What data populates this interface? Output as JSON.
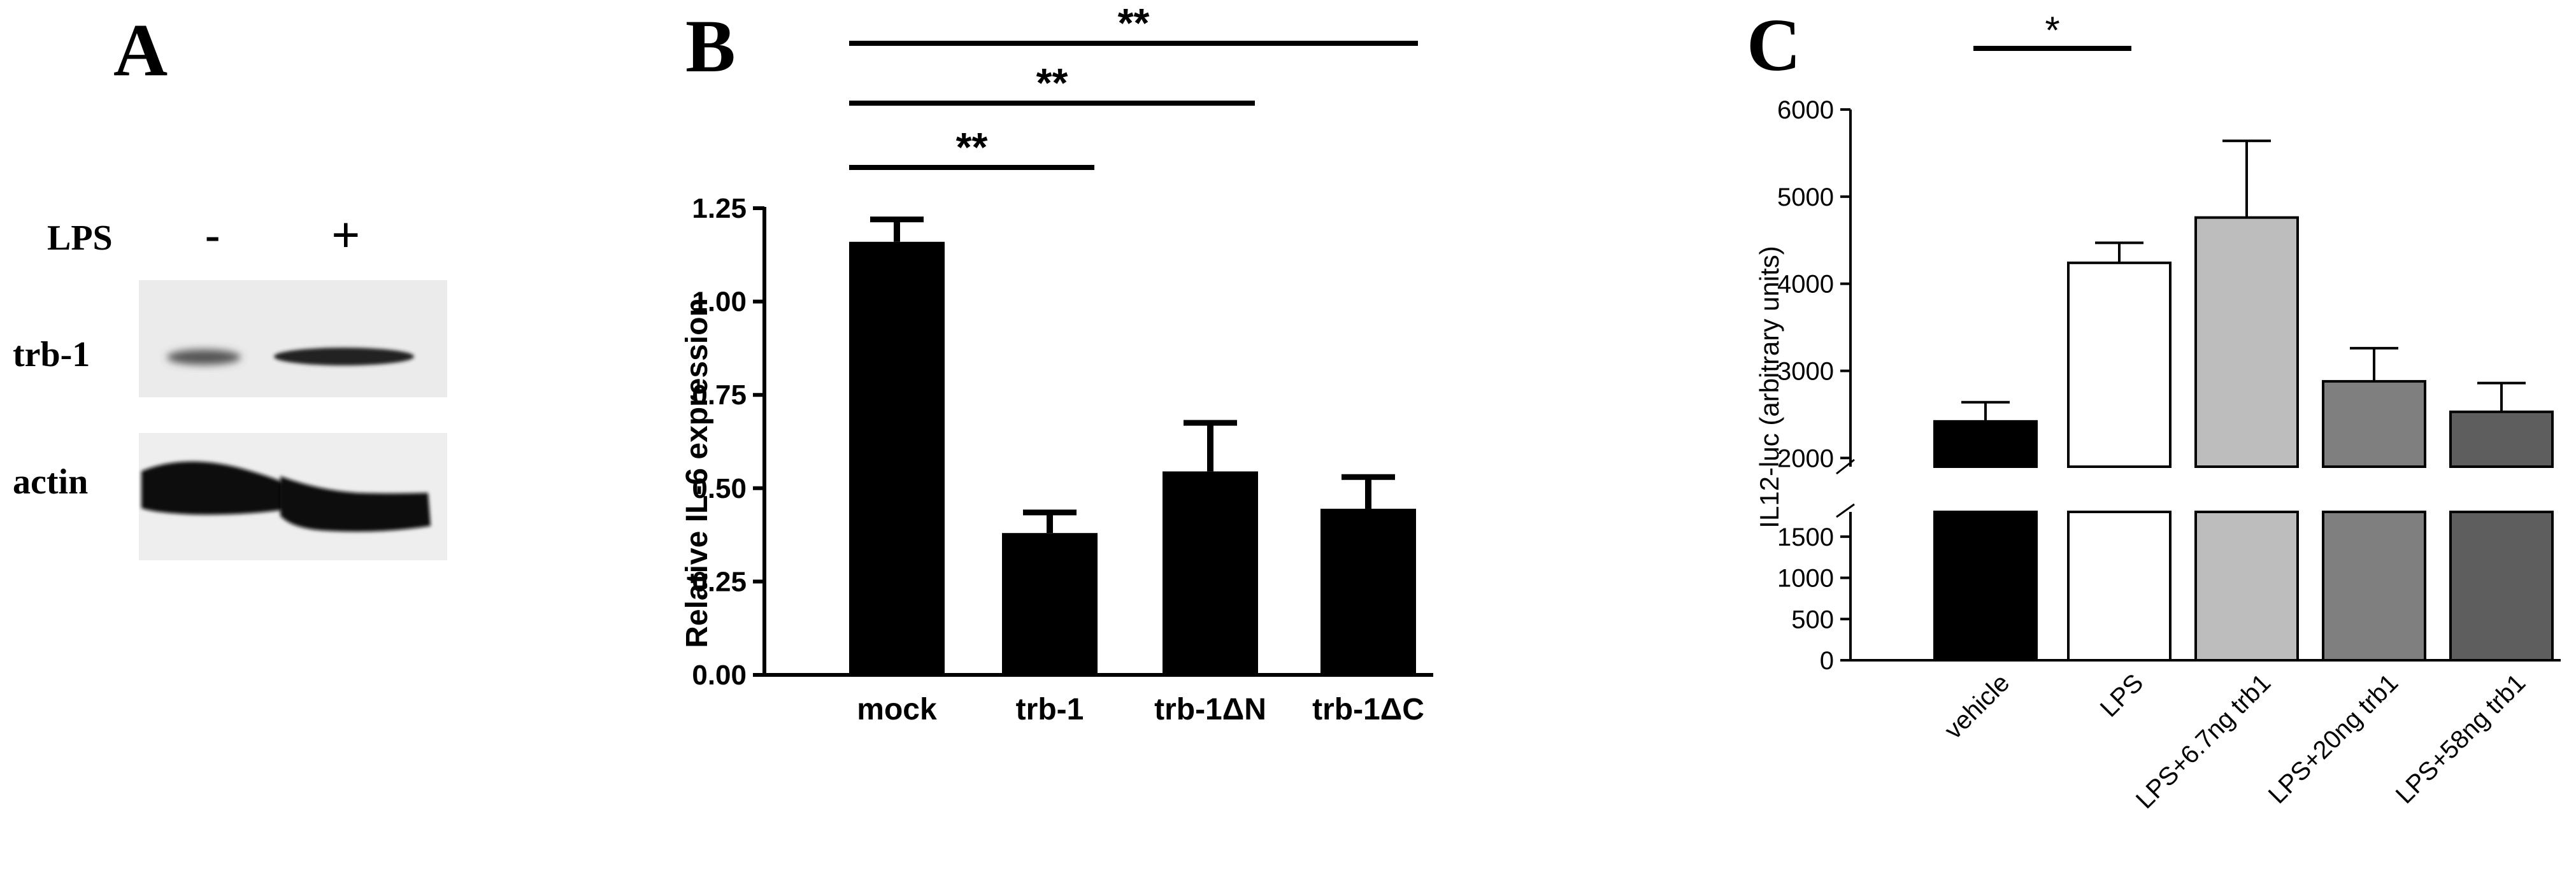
{
  "panel_a": {
    "letter": "A",
    "lps_label": "LPS",
    "lane_minus": "-",
    "lane_plus": "+",
    "band_trb": "trb-1",
    "band_actin": "actin"
  },
  "chart_data": [
    {
      "panel": "B",
      "type": "bar",
      "ylabel": "Relative IL-6 expression",
      "xlabel": "",
      "categories": [
        "mock",
        "trb-1",
        "trb-1ΔN",
        "trb-1ΔC"
      ],
      "values": [
        1.16,
        0.38,
        0.545,
        0.445
      ],
      "errors": [
        0.06,
        0.055,
        0.13,
        0.085
      ],
      "ylim": [
        0,
        1.25
      ],
      "yticks": [
        "0.00",
        "0.25",
        "0.50",
        "0.75",
        "1.00",
        "1.25"
      ],
      "bar_colors": [
        "#000000",
        "#000000",
        "#000000",
        "#000000"
      ],
      "significance": [
        {
          "from": 0,
          "to": 1,
          "label": "**"
        },
        {
          "from": 0,
          "to": 2,
          "label": "**"
        },
        {
          "from": 0,
          "to": 3,
          "label": "**"
        }
      ]
    },
    {
      "panel": "C",
      "type": "bar",
      "ylabel": "IL12-luc (arbitrary units)",
      "xlabel": "",
      "categories": [
        "vehicle",
        "LPS",
        "LPS+6.7ng trb1",
        "LPS+20ng trb1",
        "LPS+58ng trb1"
      ],
      "values": [
        2420,
        4240,
        4760,
        2880,
        2530
      ],
      "errors": [
        220,
        230,
        880,
        380,
        330
      ],
      "axis_break": {
        "lower_range": [
          0,
          1800
        ],
        "upper_range": [
          1900,
          6000
        ]
      },
      "yticks_lower": [
        "0",
        "500",
        "1000",
        "1500"
      ],
      "yticks_upper": [
        "2000",
        "3000",
        "4000",
        "5000",
        "6000"
      ],
      "bar_colors": [
        "#000000",
        "#ffffff",
        "#bdbdbd",
        "#7f7f7f",
        "#5e5e5e"
      ],
      "significance": [
        {
          "from": 0,
          "to": 1,
          "label": "*"
        }
      ]
    }
  ],
  "panel_b_letter": "B",
  "panel_c_letter": "C"
}
